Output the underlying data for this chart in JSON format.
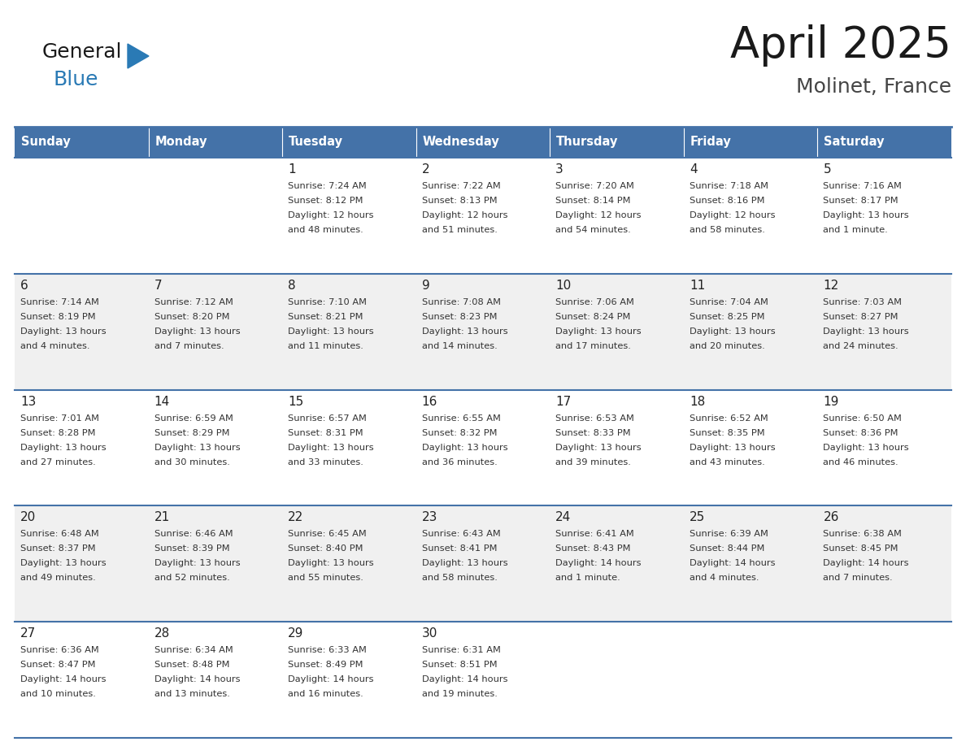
{
  "title": "April 2025",
  "subtitle": "Molinet, France",
  "header_bg": "#4472a8",
  "header_text": "#ffffff",
  "row_bg_light": "#f0f0f0",
  "row_bg_white": "#ffffff",
  "cell_border_color": "#4472a8",
  "cell_border_top_color": "#4472a8",
  "day_headers": [
    "Sunday",
    "Monday",
    "Tuesday",
    "Wednesday",
    "Thursday",
    "Friday",
    "Saturday"
  ],
  "weeks": [
    [
      {
        "day": "",
        "sunrise": "",
        "sunset": "",
        "daylight": ""
      },
      {
        "day": "",
        "sunrise": "",
        "sunset": "",
        "daylight": ""
      },
      {
        "day": "1",
        "sunrise": "Sunrise: 7:24 AM",
        "sunset": "Sunset: 8:12 PM",
        "daylight": "Daylight: 12 hours\nand 48 minutes."
      },
      {
        "day": "2",
        "sunrise": "Sunrise: 7:22 AM",
        "sunset": "Sunset: 8:13 PM",
        "daylight": "Daylight: 12 hours\nand 51 minutes."
      },
      {
        "day": "3",
        "sunrise": "Sunrise: 7:20 AM",
        "sunset": "Sunset: 8:14 PM",
        "daylight": "Daylight: 12 hours\nand 54 minutes."
      },
      {
        "day": "4",
        "sunrise": "Sunrise: 7:18 AM",
        "sunset": "Sunset: 8:16 PM",
        "daylight": "Daylight: 12 hours\nand 58 minutes."
      },
      {
        "day": "5",
        "sunrise": "Sunrise: 7:16 AM",
        "sunset": "Sunset: 8:17 PM",
        "daylight": "Daylight: 13 hours\nand 1 minute."
      }
    ],
    [
      {
        "day": "6",
        "sunrise": "Sunrise: 7:14 AM",
        "sunset": "Sunset: 8:19 PM",
        "daylight": "Daylight: 13 hours\nand 4 minutes."
      },
      {
        "day": "7",
        "sunrise": "Sunrise: 7:12 AM",
        "sunset": "Sunset: 8:20 PM",
        "daylight": "Daylight: 13 hours\nand 7 minutes."
      },
      {
        "day": "8",
        "sunrise": "Sunrise: 7:10 AM",
        "sunset": "Sunset: 8:21 PM",
        "daylight": "Daylight: 13 hours\nand 11 minutes."
      },
      {
        "day": "9",
        "sunrise": "Sunrise: 7:08 AM",
        "sunset": "Sunset: 8:23 PM",
        "daylight": "Daylight: 13 hours\nand 14 minutes."
      },
      {
        "day": "10",
        "sunrise": "Sunrise: 7:06 AM",
        "sunset": "Sunset: 8:24 PM",
        "daylight": "Daylight: 13 hours\nand 17 minutes."
      },
      {
        "day": "11",
        "sunrise": "Sunrise: 7:04 AM",
        "sunset": "Sunset: 8:25 PM",
        "daylight": "Daylight: 13 hours\nand 20 minutes."
      },
      {
        "day": "12",
        "sunrise": "Sunrise: 7:03 AM",
        "sunset": "Sunset: 8:27 PM",
        "daylight": "Daylight: 13 hours\nand 24 minutes."
      }
    ],
    [
      {
        "day": "13",
        "sunrise": "Sunrise: 7:01 AM",
        "sunset": "Sunset: 8:28 PM",
        "daylight": "Daylight: 13 hours\nand 27 minutes."
      },
      {
        "day": "14",
        "sunrise": "Sunrise: 6:59 AM",
        "sunset": "Sunset: 8:29 PM",
        "daylight": "Daylight: 13 hours\nand 30 minutes."
      },
      {
        "day": "15",
        "sunrise": "Sunrise: 6:57 AM",
        "sunset": "Sunset: 8:31 PM",
        "daylight": "Daylight: 13 hours\nand 33 minutes."
      },
      {
        "day": "16",
        "sunrise": "Sunrise: 6:55 AM",
        "sunset": "Sunset: 8:32 PM",
        "daylight": "Daylight: 13 hours\nand 36 minutes."
      },
      {
        "day": "17",
        "sunrise": "Sunrise: 6:53 AM",
        "sunset": "Sunset: 8:33 PM",
        "daylight": "Daylight: 13 hours\nand 39 minutes."
      },
      {
        "day": "18",
        "sunrise": "Sunrise: 6:52 AM",
        "sunset": "Sunset: 8:35 PM",
        "daylight": "Daylight: 13 hours\nand 43 minutes."
      },
      {
        "day": "19",
        "sunrise": "Sunrise: 6:50 AM",
        "sunset": "Sunset: 8:36 PM",
        "daylight": "Daylight: 13 hours\nand 46 minutes."
      }
    ],
    [
      {
        "day": "20",
        "sunrise": "Sunrise: 6:48 AM",
        "sunset": "Sunset: 8:37 PM",
        "daylight": "Daylight: 13 hours\nand 49 minutes."
      },
      {
        "day": "21",
        "sunrise": "Sunrise: 6:46 AM",
        "sunset": "Sunset: 8:39 PM",
        "daylight": "Daylight: 13 hours\nand 52 minutes."
      },
      {
        "day": "22",
        "sunrise": "Sunrise: 6:45 AM",
        "sunset": "Sunset: 8:40 PM",
        "daylight": "Daylight: 13 hours\nand 55 minutes."
      },
      {
        "day": "23",
        "sunrise": "Sunrise: 6:43 AM",
        "sunset": "Sunset: 8:41 PM",
        "daylight": "Daylight: 13 hours\nand 58 minutes."
      },
      {
        "day": "24",
        "sunrise": "Sunrise: 6:41 AM",
        "sunset": "Sunset: 8:43 PM",
        "daylight": "Daylight: 14 hours\nand 1 minute."
      },
      {
        "day": "25",
        "sunrise": "Sunrise: 6:39 AM",
        "sunset": "Sunset: 8:44 PM",
        "daylight": "Daylight: 14 hours\nand 4 minutes."
      },
      {
        "day": "26",
        "sunrise": "Sunrise: 6:38 AM",
        "sunset": "Sunset: 8:45 PM",
        "daylight": "Daylight: 14 hours\nand 7 minutes."
      }
    ],
    [
      {
        "day": "27",
        "sunrise": "Sunrise: 6:36 AM",
        "sunset": "Sunset: 8:47 PM",
        "daylight": "Daylight: 14 hours\nand 10 minutes."
      },
      {
        "day": "28",
        "sunrise": "Sunrise: 6:34 AM",
        "sunset": "Sunset: 8:48 PM",
        "daylight": "Daylight: 14 hours\nand 13 minutes."
      },
      {
        "day": "29",
        "sunrise": "Sunrise: 6:33 AM",
        "sunset": "Sunset: 8:49 PM",
        "daylight": "Daylight: 14 hours\nand 16 minutes."
      },
      {
        "day": "30",
        "sunrise": "Sunrise: 6:31 AM",
        "sunset": "Sunset: 8:51 PM",
        "daylight": "Daylight: 14 hours\nand 19 minutes."
      },
      {
        "day": "",
        "sunrise": "",
        "sunset": "",
        "daylight": ""
      },
      {
        "day": "",
        "sunrise": "",
        "sunset": "",
        "daylight": ""
      },
      {
        "day": "",
        "sunrise": "",
        "sunset": "",
        "daylight": ""
      }
    ]
  ],
  "logo_general_color": "#1a1a1a",
  "logo_blue_color": "#2a7ab5",
  "title_color": "#1a1a1a",
  "subtitle_color": "#444444",
  "title_fontsize": 38,
  "subtitle_fontsize": 18
}
